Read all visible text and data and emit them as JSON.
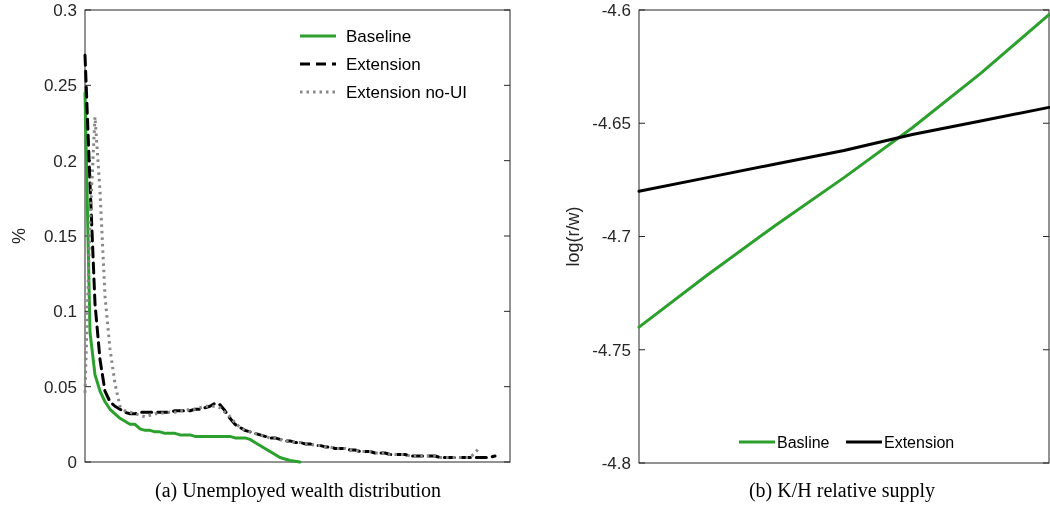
{
  "chart_data": [
    {
      "type": "line",
      "title": "(a) Unemployed wealth distribution",
      "ylabel": "%",
      "categories": [
        null,
        null,
        null,
        null,
        null,
        null,
        null,
        null,
        null,
        null,
        null,
        null,
        null,
        null,
        null,
        null,
        null,
        null,
        null,
        null,
        null,
        null,
        null,
        null,
        null,
        null,
        null,
        null,
        null,
        null,
        null,
        null,
        null,
        null,
        null,
        null,
        null,
        null,
        null,
        null,
        null,
        null,
        null,
        null,
        null,
        null,
        null,
        null,
        null,
        null,
        null,
        null,
        null,
        null,
        null,
        null,
        null,
        null,
        null,
        null,
        null,
        null,
        null,
        null,
        null,
        null,
        null,
        null,
        null,
        null,
        null,
        null,
        null,
        null,
        null,
        null,
        null,
        null,
        null,
        null,
        null,
        null,
        null,
        null,
        null,
        null
      ],
      "ylim": [
        0,
        0.3
      ],
      "yticks": [
        0,
        0.05,
        0.1,
        0.15,
        0.2,
        0.25,
        0.3
      ],
      "tick_labels": "y",
      "grid": false,
      "legend": "top right",
      "marker": "none",
      "series": [
        {
          "name": "Baseline",
          "color": "#2ca02c",
          "line_style": "solid",
          "values": [
            0.245,
            0.086,
            0.058,
            0.047,
            0.04,
            0.035,
            0.032,
            0.029,
            0.027,
            0.025,
            0.025,
            0.022,
            0.021,
            0.021,
            0.02,
            0.02,
            0.019,
            0.019,
            0.019,
            0.018,
            0.018,
            0.018,
            0.017,
            0.017,
            0.017,
            0.017,
            0.017,
            0.017,
            0.017,
            0.017,
            0.016,
            0.016,
            0.016,
            0.015,
            0.013,
            0.011,
            0.009,
            0.007,
            0.005,
            0.003,
            0.002,
            0.001,
            0.0005,
            0,
            null,
            null,
            null,
            null,
            null,
            null,
            null,
            null,
            null,
            null,
            null,
            null,
            null,
            null,
            null,
            null,
            null,
            null,
            null,
            null,
            null,
            null,
            null,
            null,
            null,
            null,
            null,
            null,
            null,
            null,
            null,
            null,
            null,
            null,
            null,
            null,
            null,
            null,
            null,
            null,
            null,
            null
          ]
        },
        {
          "name": "Extension",
          "color": "#000000",
          "line_style": "dashed",
          "values": [
            0.27,
            0.185,
            0.105,
            0.068,
            0.047,
            0.04,
            0.037,
            0.035,
            0.033,
            0.032,
            0.032,
            0.033,
            0.033,
            0.033,
            0.033,
            0.033,
            0.033,
            0.033,
            0.034,
            0.034,
            0.034,
            0.034,
            0.035,
            0.035,
            0.036,
            0.037,
            0.039,
            0.038,
            0.034,
            0.029,
            0.025,
            0.023,
            0.021,
            0.02,
            0.019,
            0.018,
            0.017,
            0.016,
            0.016,
            0.015,
            0.014,
            0.014,
            0.013,
            0.013,
            0.012,
            0.012,
            0.011,
            0.011,
            0.01,
            0.01,
            0.009,
            0.009,
            0.009,
            0.008,
            0.008,
            0.007,
            0.007,
            0.007,
            0.006,
            0.006,
            0.006,
            0.005,
            0.005,
            0.005,
            0.005,
            0.004,
            0.004,
            0.004,
            0.004,
            0.004,
            0.004,
            0.003,
            0.003,
            0.003,
            0.003,
            0.003,
            0.003,
            0.003,
            0.003,
            0.003,
            0.003,
            0.003,
            0.004,
            null,
            null,
            null
          ]
        },
        {
          "name": "Extension no-UI",
          "color": "#888888",
          "line_style": "dotted",
          "values": [
            0.046,
            0.16,
            0.229,
            0.18,
            0.11,
            0.075,
            0.052,
            0.037,
            0.034,
            0.033,
            0.032,
            0.031,
            0.03,
            0.031,
            0.032,
            0.032,
            0.033,
            0.033,
            0.033,
            0.034,
            0.034,
            0.035,
            0.035,
            0.036,
            0.037,
            0.037,
            0.037,
            0.036,
            0.033,
            0.03,
            0.026,
            0.023,
            0.021,
            0.02,
            0.019,
            0.018,
            0.017,
            0.016,
            0.016,
            0.015,
            0.014,
            0.014,
            0.013,
            0.013,
            0.012,
            0.012,
            0.011,
            0.011,
            0.01,
            0.01,
            0.009,
            0.009,
            0.009,
            0.008,
            0.008,
            0.007,
            0.007,
            0.007,
            0.006,
            0.006,
            0.006,
            0.005,
            0.005,
            0.005,
            0.005,
            0.004,
            0.004,
            0.004,
            0.004,
            0.004,
            0.004,
            0.003,
            0.003,
            0.003,
            0.003,
            0.003,
            0.003,
            0.003,
            0.006,
            0.01,
            null,
            null,
            null,
            null,
            null,
            null
          ]
        }
      ]
    },
    {
      "type": "line",
      "title": "(b) K/H relative supply",
      "ylabel": "log(r/w)",
      "categories": [
        null,
        null,
        null,
        null,
        null,
        null,
        null
      ],
      "ylim": [
        -4.8,
        -4.6
      ],
      "yticks": [
        -4.8,
        -4.75,
        -4.7,
        -4.65,
        -4.6
      ],
      "tick_labels": "y",
      "grid": false,
      "legend": "bottom",
      "marker": "none",
      "series": [
        {
          "name": "Basline",
          "color": "#2ca02c",
          "line_style": "solid",
          "values": [
            -4.74,
            -4.717,
            -4.695,
            -4.674,
            -4.652,
            -4.628,
            -4.602
          ]
        },
        {
          "name": "Extension",
          "color": "#000000",
          "line_style": "solid",
          "values": [
            -4.68,
            -4.674,
            -4.668,
            -4.662,
            -4.655,
            -4.649,
            -4.643
          ]
        }
      ]
    }
  ]
}
